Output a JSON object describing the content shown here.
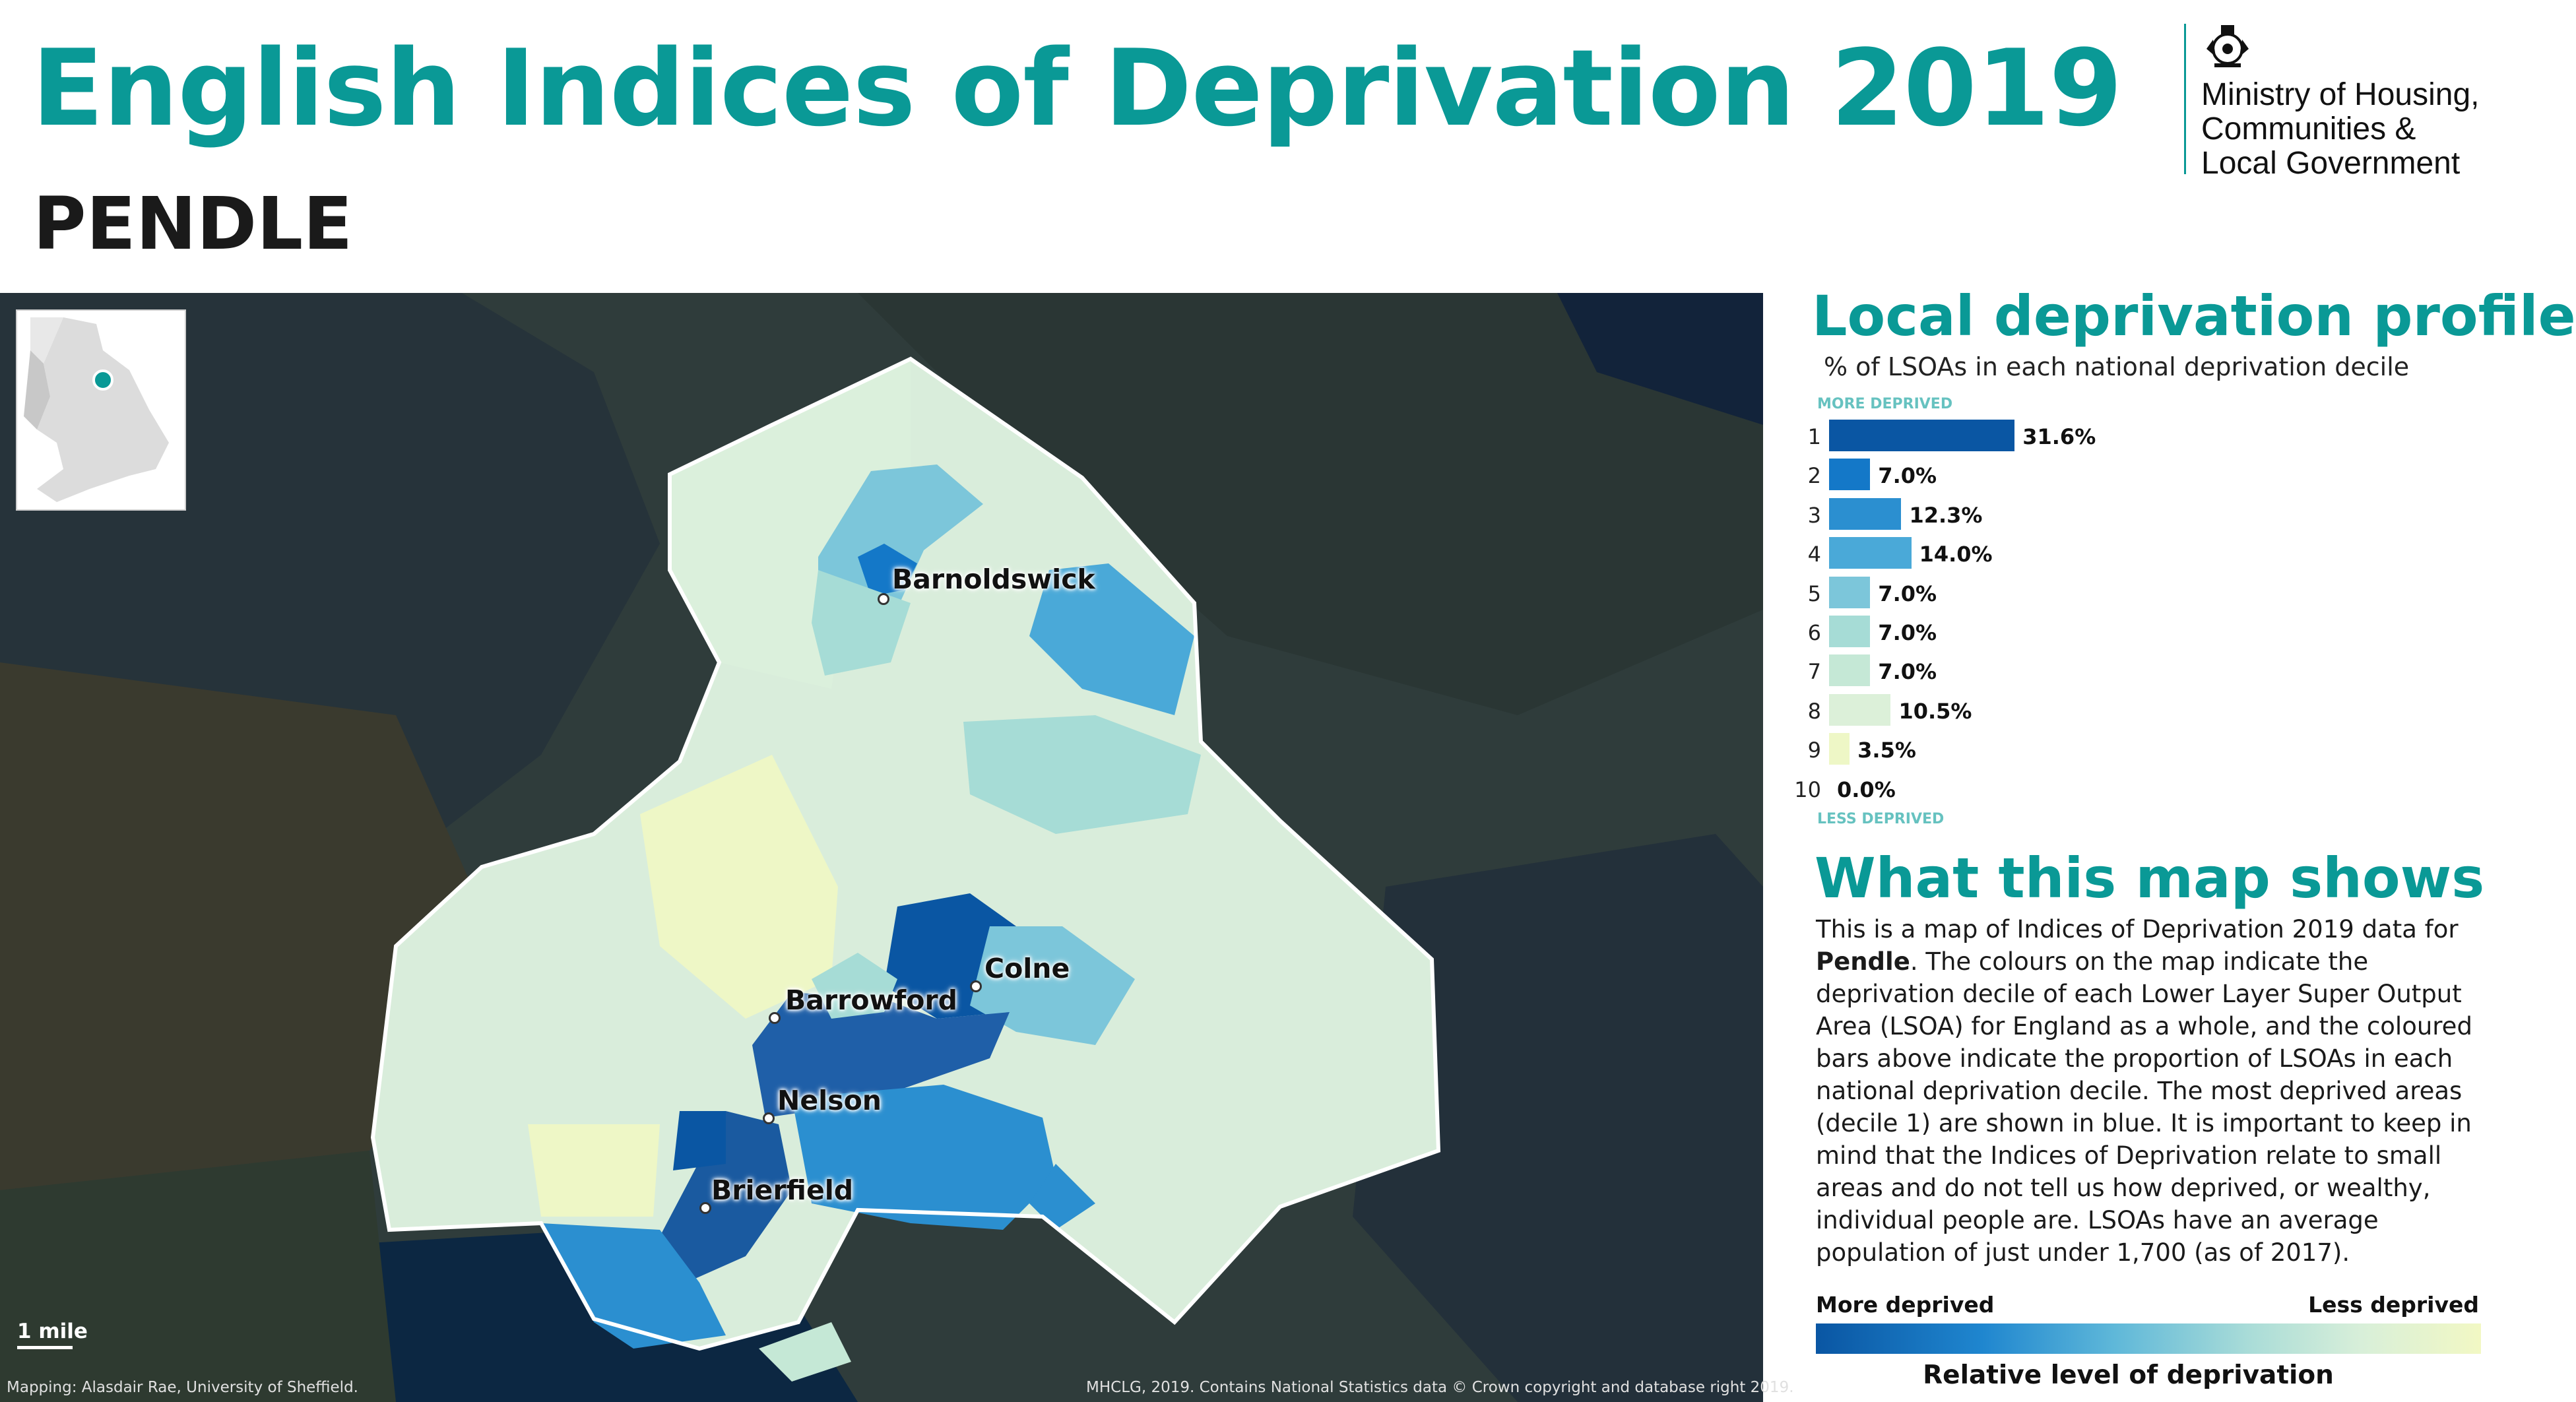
{
  "header": {
    "title": "English Indices of Deprivation 2019",
    "area": "PENDLE",
    "org_name_lines": [
      "Ministry of Housing,",
      "Communities &",
      "Local Government"
    ]
  },
  "map": {
    "places": [
      "Barnoldswick",
      "Colne",
      "Barrowford",
      "Nelson",
      "Brierfield"
    ],
    "scale_label": "1 mile",
    "credit_left": "Mapping: Alasdair Rae, University of Sheffield.",
    "credit_right": "MHCLG, 2019. Contains National Statistics data © Crown copyright and database right 2019."
  },
  "profile": {
    "heading": "Local deprivation profile",
    "subheading": "% of LSOAs in each national deprivation decile",
    "more_tag": "MORE DEPRIVED",
    "less_tag": "LESS DEPRIVED",
    "deciles": [
      {
        "decile": "1",
        "label": "31.6%",
        "value": 31.6,
        "color": "#0a56a3"
      },
      {
        "decile": "2",
        "label": "7.0%",
        "value": 7.0,
        "color": "#1478c8"
      },
      {
        "decile": "3",
        "label": "12.3%",
        "value": 12.3,
        "color": "#2b8fd0"
      },
      {
        "decile": "4",
        "label": "14.0%",
        "value": 14.0,
        "color": "#4aa9d8"
      },
      {
        "decile": "5",
        "label": "7.0%",
        "value": 7.0,
        "color": "#7cc6da"
      },
      {
        "decile": "6",
        "label": "7.0%",
        "value": 7.0,
        "color": "#a6dcd6"
      },
      {
        "decile": "7",
        "label": "7.0%",
        "value": 7.0,
        "color": "#c5e8d6"
      },
      {
        "decile": "8",
        "label": "10.5%",
        "value": 10.5,
        "color": "#dcf0d9"
      },
      {
        "decile": "9",
        "label": "3.5%",
        "value": 3.5,
        "color": "#eef7c6"
      },
      {
        "decile": "10",
        "label": "0.0%",
        "value": 0.0,
        "color": "#f6f9d6"
      }
    ]
  },
  "about": {
    "heading": "What this map shows",
    "text_before": "This is a map of Indices of Deprivation 2019 data for ",
    "text_bold": "Pendle",
    "text_after": ". The colours on the map indicate the deprivation decile of each Lower Layer Super Output Area (LSOA) for England as a whole, and the coloured bars above indicate the proportion of LSOAs in each national deprivation decile. The most deprived areas (decile 1) are shown in blue. It is important to keep in mind that the Indices of Deprivation relate to small areas and do not tell us how deprived, or wealthy, individual people are. LSOAs have an average population of just under 1,700 (as of 2017)."
  },
  "legend": {
    "more": "More deprived",
    "less": "Less deprived",
    "title": "Relative level of deprivation"
  }
}
